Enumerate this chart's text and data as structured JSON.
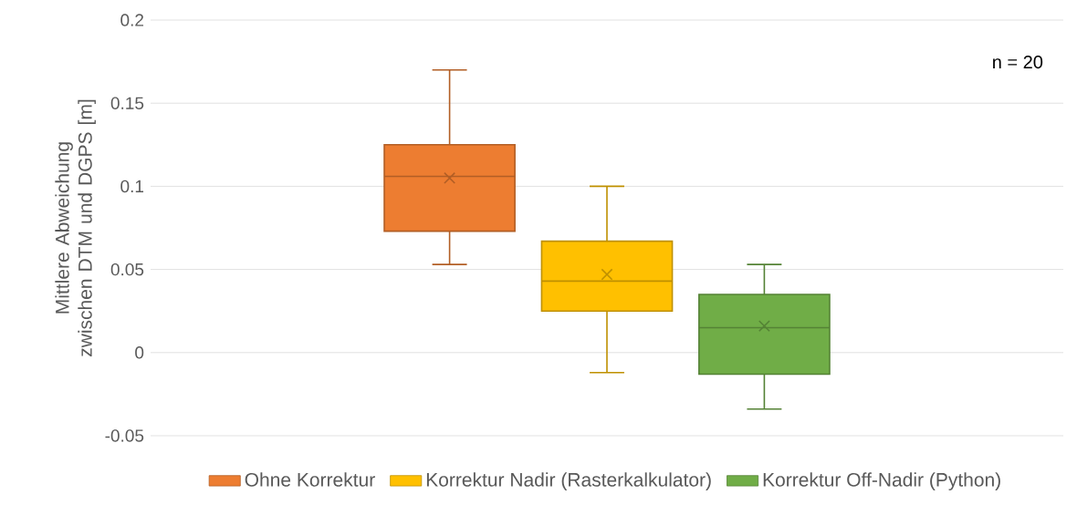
{
  "chart_data": {
    "type": "box",
    "ylabel": "Mittlere Abweichung zwischen DTM und DGPS [m]",
    "categories": [
      null
    ],
    "series": [
      {
        "name": "Ohne Korrektur",
        "color": "#ed7d31",
        "boxes": [
          {
            "low": 0.053,
            "q1": 0.073,
            "median": 0.106,
            "q3": 0.125,
            "high": 0.17,
            "mean": 0.105
          }
        ]
      },
      {
        "name": "Korrektur Nadir (Rasterkalkulator)",
        "color": "#ffc000",
        "boxes": [
          {
            "low": -0.012,
            "q1": 0.025,
            "median": 0.043,
            "q3": 0.067,
            "high": 0.1,
            "mean": 0.047
          }
        ]
      },
      {
        "name": "Korrektur Off-Nadir (Python)",
        "color": "#70ad47",
        "boxes": [
          {
            "low": -0.034,
            "q1": -0.013,
            "median": 0.015,
            "q3": 0.035,
            "high": 0.053,
            "mean": 0.016
          }
        ]
      }
    ],
    "ylim": [
      -0.05,
      0.2
    ],
    "yticks": [
      -0.05,
      0,
      0.05,
      0.1,
      0.15,
      0.2
    ],
    "grid": "y",
    "legend": "bottom",
    "marker": "cross",
    "annotations": [
      "n = 20"
    ]
  }
}
